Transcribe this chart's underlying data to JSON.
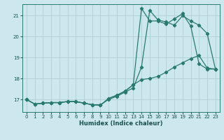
{
  "xlabel": "Humidex (Indice chaleur)",
  "xlim": [
    -0.5,
    23.5
  ],
  "ylim": [
    16.4,
    21.55
  ],
  "yticks": [
    17,
    18,
    19,
    20,
    21
  ],
  "xticks": [
    0,
    1,
    2,
    3,
    4,
    5,
    6,
    7,
    8,
    9,
    10,
    11,
    12,
    13,
    14,
    15,
    16,
    17,
    18,
    19,
    20,
    21,
    22,
    23
  ],
  "bg_color": "#cce8ee",
  "grid_color": "#b0ced5",
  "line_color": "#2a7a70",
  "line1_y": [
    17.0,
    16.78,
    16.82,
    16.85,
    16.85,
    16.9,
    16.9,
    16.82,
    16.75,
    16.75,
    17.0,
    17.15,
    17.35,
    17.55,
    18.55,
    21.25,
    20.8,
    20.7,
    20.55,
    21.0,
    20.75,
    20.55,
    20.15,
    18.45
  ],
  "line2_y": [
    17.0,
    16.78,
    16.82,
    16.85,
    16.85,
    16.9,
    16.9,
    16.82,
    16.75,
    16.72,
    17.05,
    17.2,
    17.4,
    17.7,
    21.35,
    20.75,
    20.75,
    20.6,
    20.85,
    21.1,
    20.5,
    18.7,
    18.45,
    18.45
  ],
  "line3_y": [
    17.0,
    16.78,
    16.82,
    16.85,
    16.85,
    16.9,
    16.9,
    16.82,
    16.75,
    16.72,
    17.05,
    17.2,
    17.4,
    17.7,
    17.95,
    18.0,
    18.1,
    18.3,
    18.55,
    18.75,
    18.95,
    19.1,
    18.5,
    18.45
  ],
  "markersize": 2.2,
  "linewidth": 0.9
}
